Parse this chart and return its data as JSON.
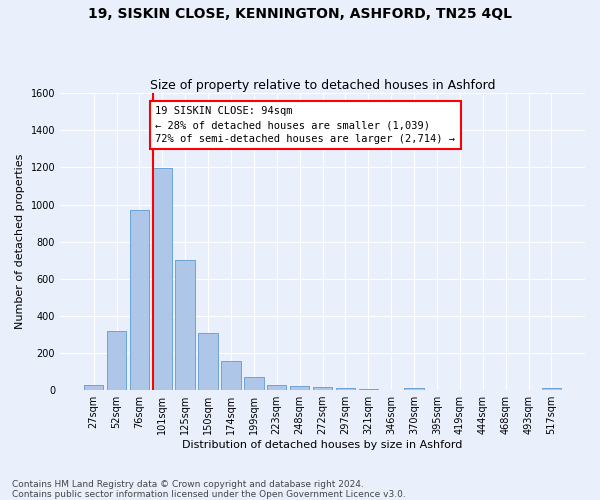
{
  "title": "19, SISKIN CLOSE, KENNINGTON, ASHFORD, TN25 4QL",
  "subtitle": "Size of property relative to detached houses in Ashford",
  "xlabel": "Distribution of detached houses by size in Ashford",
  "ylabel": "Number of detached properties",
  "footer": "Contains HM Land Registry data © Crown copyright and database right 2024.\nContains public sector information licensed under the Open Government Licence v3.0.",
  "categories": [
    "27sqm",
    "52sqm",
    "76sqm",
    "101sqm",
    "125sqm",
    "150sqm",
    "174sqm",
    "199sqm",
    "223sqm",
    "248sqm",
    "272sqm",
    "297sqm",
    "321sqm",
    "346sqm",
    "370sqm",
    "395sqm",
    "419sqm",
    "444sqm",
    "468sqm",
    "493sqm",
    "517sqm"
  ],
  "values": [
    30,
    320,
    970,
    1195,
    700,
    305,
    155,
    70,
    30,
    20,
    15,
    12,
    8,
    0,
    12,
    0,
    0,
    0,
    0,
    0,
    12
  ],
  "bar_color": "#aec6e8",
  "bar_edge_color": "#5b9bd5",
  "property_line_x": 3,
  "annotation_text": "19 SISKIN CLOSE: 94sqm\n← 28% of detached houses are smaller (1,039)\n72% of semi-detached houses are larger (2,714) →",
  "annotation_box_color": "white",
  "annotation_box_edge": "red",
  "vline_color": "red",
  "ylim": [
    0,
    1600
  ],
  "yticks": [
    0,
    200,
    400,
    600,
    800,
    1000,
    1200,
    1400,
    1600
  ],
  "bg_color": "#eaf0fb",
  "grid_color": "white",
  "title_fontsize": 10,
  "subtitle_fontsize": 9,
  "axis_label_fontsize": 8,
  "tick_fontsize": 7,
  "footer_fontsize": 6.5,
  "annotation_fontsize": 7.5
}
